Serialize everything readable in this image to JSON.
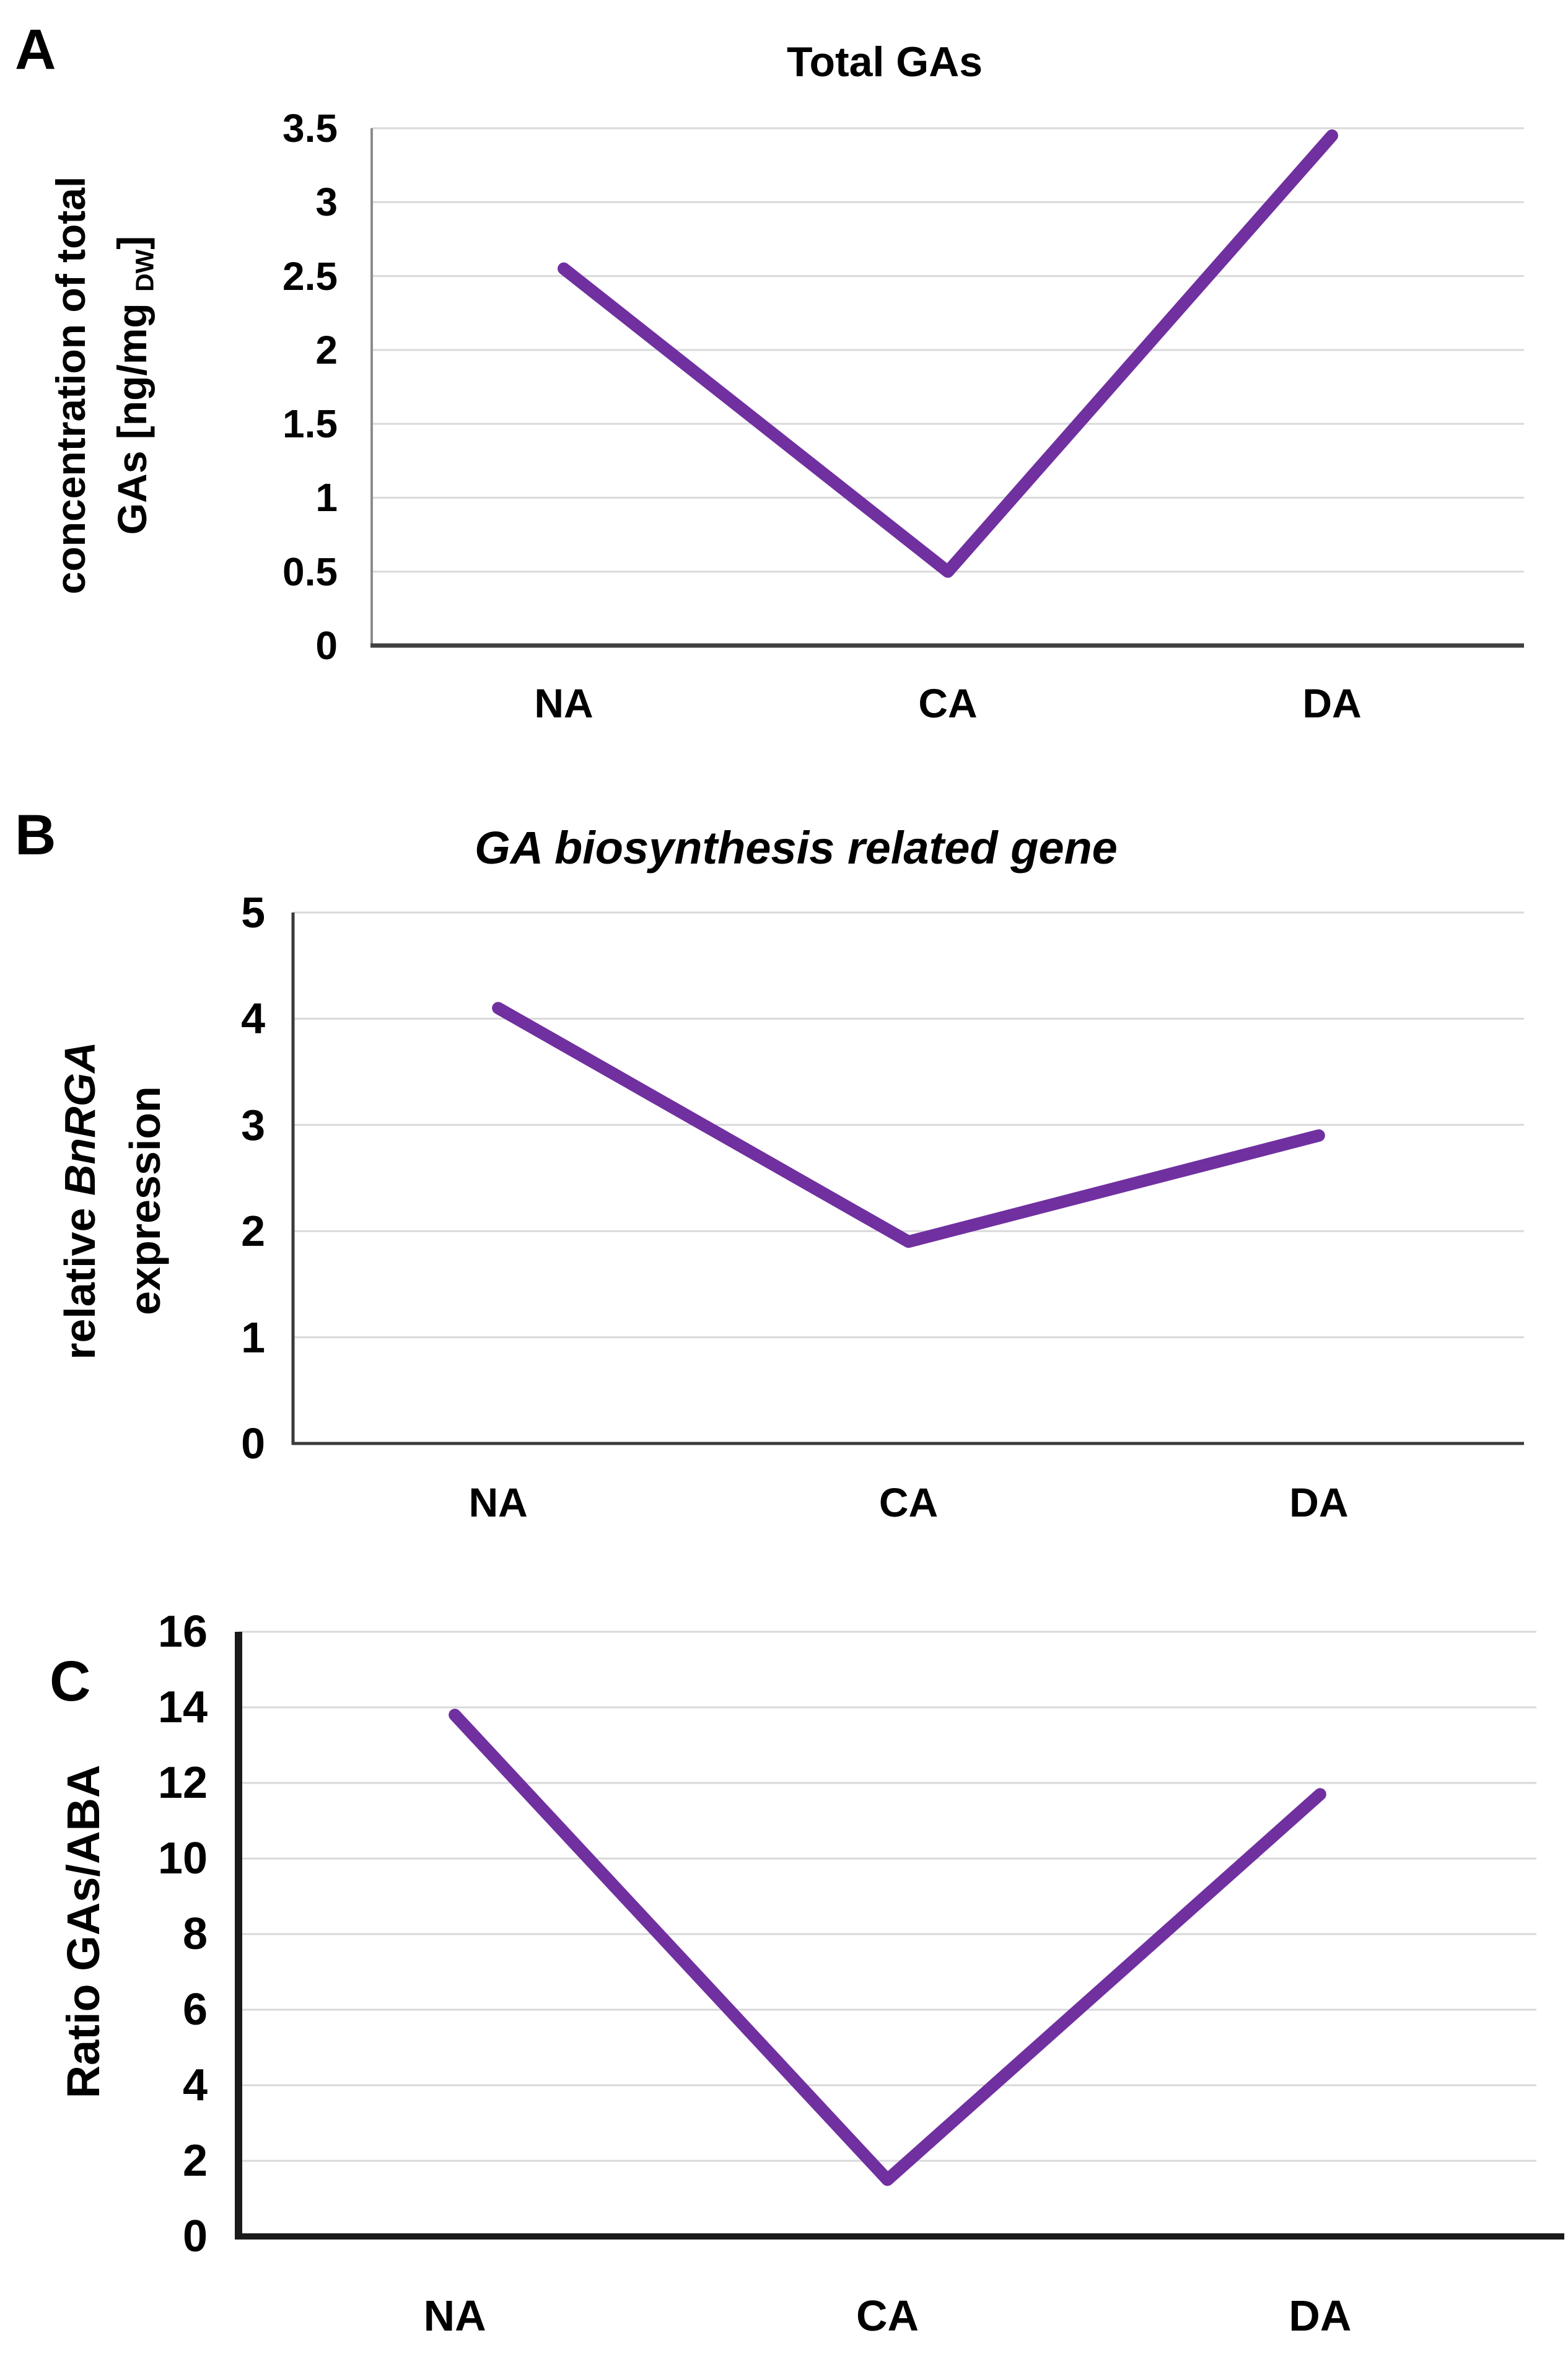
{
  "page": {
    "background": "#ffffff"
  },
  "panels": [
    {
      "letter": "A",
      "title": "Total GAs",
      "ylabel_line1": "concentration of total",
      "ylabel_line2_pre": "GAs [ng/mg ",
      "ylabel_line2_sub": "DW",
      "ylabel_line2_post": "]"
    },
    {
      "letter": "B",
      "title": "GA biosynthesis related gene",
      "ylabel_line1_pre": "relative ",
      "ylabel_line1_gene": "BnRGA",
      "ylabel_line2": "expression"
    },
    {
      "letter": "C",
      "ylabel": "Ratio GAs/ABA"
    }
  ],
  "chart_data": [
    {
      "type": "line",
      "panel": "A",
      "title": "Total GAs",
      "categories": [
        "NA",
        "CA",
        "DA"
      ],
      "values": [
        2.55,
        0.5,
        3.45
      ],
      "xlabel": "",
      "ylabel": "concentration of total GAs [ng/mg DW]",
      "ylim": [
        0,
        3.5
      ],
      "ytick_step": 0.5,
      "ytick_labels": [
        "0",
        "0.5",
        "1",
        "1.5",
        "2",
        "2.5",
        "3",
        "3.5"
      ],
      "line_color": "#7030A0",
      "grid_color": "#D9D9D9",
      "grid": true,
      "legend": "none"
    },
    {
      "type": "line",
      "panel": "B",
      "title": "GA biosynthesis related gene",
      "categories": [
        "NA",
        "CA",
        "DA"
      ],
      "values": [
        4.1,
        1.9,
        2.9
      ],
      "xlabel": "",
      "ylabel": "relative BnRGA expression",
      "ylim": [
        0,
        5
      ],
      "ytick_step": 1,
      "ytick_labels": [
        "0",
        "1",
        "2",
        "3",
        "4",
        "5"
      ],
      "line_color": "#7030A0",
      "grid_color": "#D9D9D9",
      "grid": true,
      "legend": "none"
    },
    {
      "type": "line",
      "panel": "C",
      "title": "",
      "categories": [
        "NA",
        "CA",
        "DA"
      ],
      "values": [
        13.8,
        1.5,
        11.7
      ],
      "xlabel": "",
      "ylabel": "Ratio GAs/ABA",
      "ylim": [
        0,
        16
      ],
      "ytick_step": 2,
      "ytick_labels": [
        "0",
        "2",
        "4",
        "6",
        "8",
        "10",
        "12",
        "14",
        "16"
      ],
      "line_color": "#7030A0",
      "grid_color": "#D9D9D9",
      "grid": true,
      "legend": "none"
    }
  ]
}
